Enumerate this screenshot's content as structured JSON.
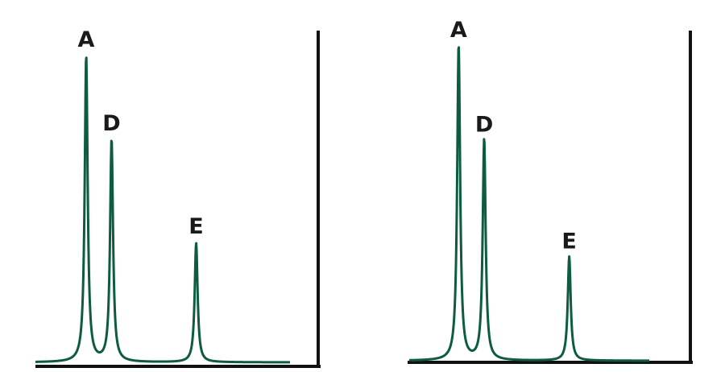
{
  "colors": {
    "trace": "#0d5c3f",
    "axis": "#111111",
    "label": "#1a1a1a"
  },
  "chart_data": [
    {
      "type": "line",
      "xlim": [
        0,
        100
      ],
      "ylim": [
        0,
        100
      ],
      "peaks": [
        {
          "name": "A",
          "x": 18,
          "height": 95
        },
        {
          "name": "D",
          "x": 27,
          "height": 69
        },
        {
          "name": "E",
          "x": 57,
          "height": 37
        }
      ]
    },
    {
      "type": "line",
      "xlim": [
        0,
        100
      ],
      "ylim": [
        0,
        100
      ],
      "peaks": [
        {
          "name": "A",
          "x": 18,
          "height": 97
        },
        {
          "name": "D",
          "x": 27,
          "height": 68
        },
        {
          "name": "E",
          "x": 57,
          "height": 32
        }
      ]
    }
  ]
}
